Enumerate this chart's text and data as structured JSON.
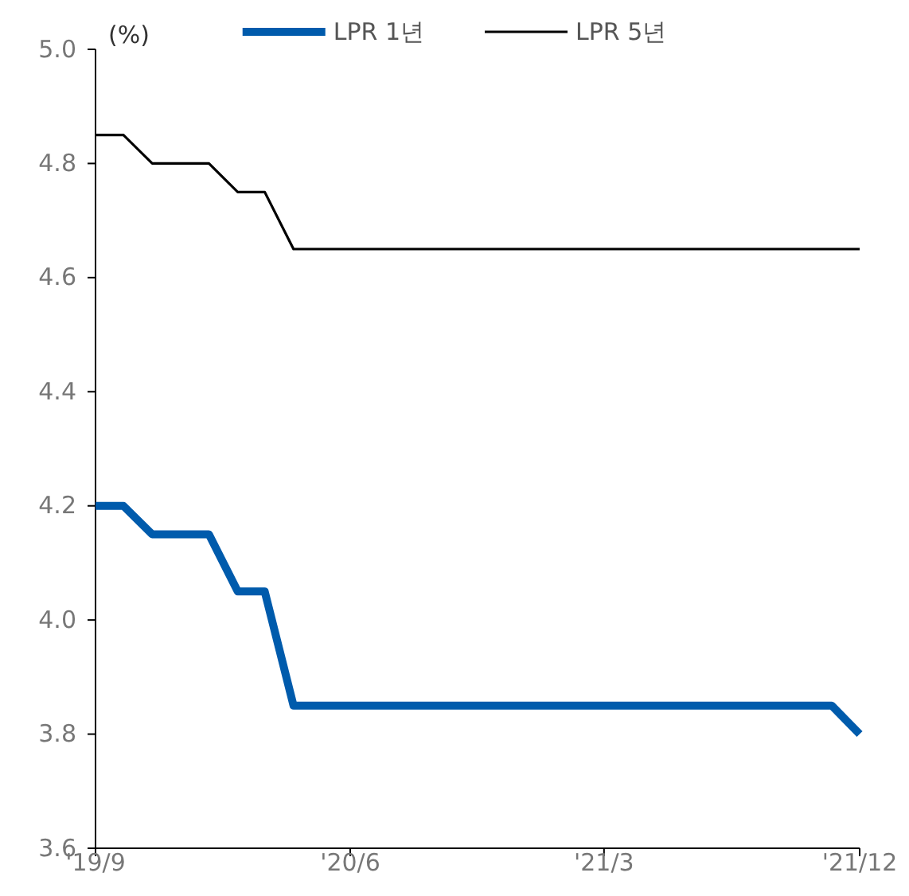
{
  "chart_data": {
    "type": "line",
    "ylabel": "(%)",
    "x": [
      "2019-09",
      "2019-10",
      "2019-11",
      "2019-12",
      "2020-01",
      "2020-02",
      "2020-03",
      "2020-04",
      "2020-05",
      "2020-06",
      "2020-07",
      "2020-08",
      "2020-09",
      "2020-10",
      "2020-11",
      "2020-12",
      "2021-01",
      "2021-02",
      "2021-03",
      "2021-04",
      "2021-05",
      "2021-06",
      "2021-07",
      "2021-08",
      "2021-09",
      "2021-10",
      "2021-11",
      "2021-12"
    ],
    "series": [
      {
        "name": "LPR 1년",
        "color": "#005bac",
        "values": [
          4.2,
          4.2,
          4.15,
          4.15,
          4.15,
          4.05,
          4.05,
          3.85,
          3.85,
          3.85,
          3.85,
          3.85,
          3.85,
          3.85,
          3.85,
          3.85,
          3.85,
          3.85,
          3.85,
          3.85,
          3.85,
          3.85,
          3.85,
          3.85,
          3.85,
          3.85,
          3.85,
          3.8
        ]
      },
      {
        "name": "LPR 5년",
        "color": "#000000",
        "values": [
          4.85,
          4.85,
          4.8,
          4.8,
          4.8,
          4.75,
          4.75,
          4.65,
          4.65,
          4.65,
          4.65,
          4.65,
          4.65,
          4.65,
          4.65,
          4.65,
          4.65,
          4.65,
          4.65,
          4.65,
          4.65,
          4.65,
          4.65,
          4.65,
          4.65,
          4.65,
          4.65,
          4.65
        ]
      }
    ],
    "xlim": [
      "2019-09",
      "2021-12"
    ],
    "xticks": [
      {
        "value": "2019-09",
        "label": "'19/9"
      },
      {
        "value": "2020-06",
        "label": "'20/6"
      },
      {
        "value": "2021-03",
        "label": "'21/3"
      },
      {
        "value": "2021-12",
        "label": "'21/12"
      }
    ],
    "ylim": [
      3.6,
      5.0
    ],
    "yticks": [
      {
        "value": 3.6,
        "label": "3.6"
      },
      {
        "value": 3.8,
        "label": "3.8"
      },
      {
        "value": 4.0,
        "label": "4.0"
      },
      {
        "value": 4.2,
        "label": "4.2"
      },
      {
        "value": 4.4,
        "label": "4.4"
      },
      {
        "value": 4.6,
        "label": "4.6"
      },
      {
        "value": 4.8,
        "label": "4.8"
      },
      {
        "value": 5.0,
        "label": "5.0"
      }
    ],
    "grid": false,
    "legend": "top",
    "marker": "none",
    "line_style": "solid"
  }
}
